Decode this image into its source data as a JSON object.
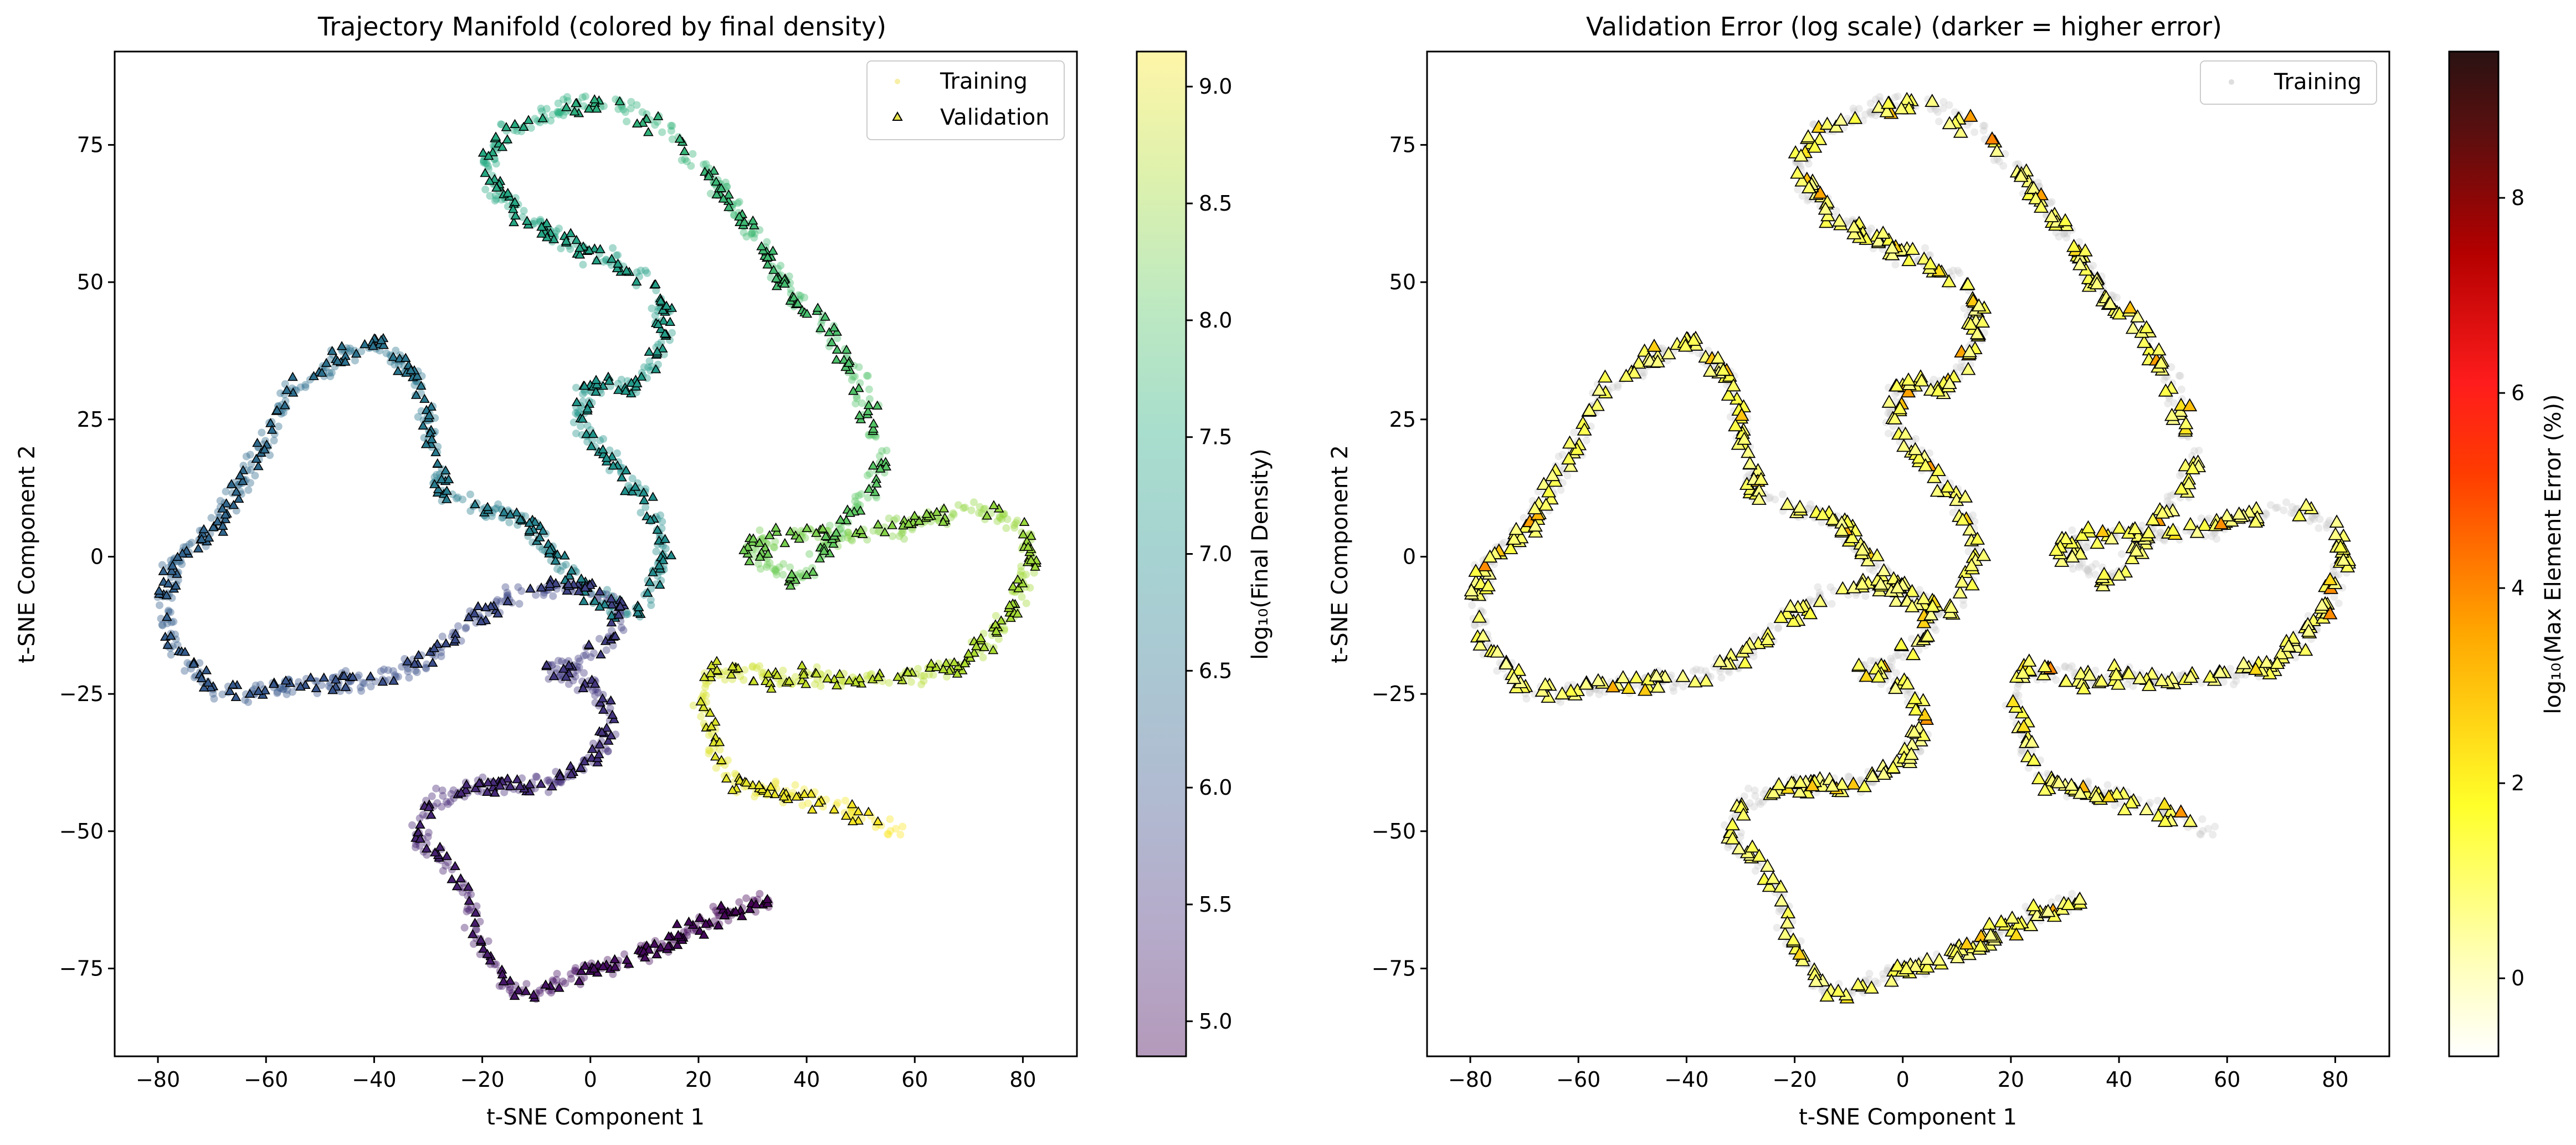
{
  "chart_data": [
    {
      "type": "scatter",
      "title": "Trajectory Manifold (colored by final density)",
      "xlabel": "t-SNE Component 1",
      "ylabel": "t-SNE Component 2",
      "xlim": [
        -88,
        90
      ],
      "ylim": [
        -91,
        92
      ],
      "xticks": [
        -80,
        -60,
        -40,
        -20,
        0,
        20,
        40,
        60,
        80
      ],
      "yticks": [
        -75,
        -50,
        -25,
        0,
        25,
        50,
        75
      ],
      "legend": {
        "position": "upper right",
        "entries": [
          "Training",
          "Validation"
        ]
      },
      "colorbar": {
        "label": "log₁₀(Final Density)",
        "colormap": "viridis",
        "range": [
          4.85,
          9.15
        ],
        "ticks": [
          "5.0",
          "5.5",
          "6.0",
          "6.5",
          "7.0",
          "7.5",
          "8.0",
          "8.5",
          "9.0"
        ]
      },
      "grid": false,
      "series": [
        {
          "name": "Training",
          "marker": "circle",
          "color_by": "log10 final density",
          "alpha": 0.4
        },
        {
          "name": "Validation",
          "marker": "triangle",
          "edge_color": "#000000",
          "color_by": "log10 final density"
        }
      ],
      "trajectory": {
        "x": [
          33,
          25,
          15,
          5,
          -5,
          -12,
          -16,
          -20,
          -22,
          -24,
          -28,
          -32,
          -30,
          -22,
          -12,
          -4,
          2,
          4,
          2,
          -2,
          -6,
          -8,
          -4,
          4,
          6,
          2,
          -4,
          -14,
          -22,
          -30,
          -38,
          -46,
          -54,
          -62,
          -70,
          -76,
          -79,
          -78,
          -74,
          -70,
          -66,
          -62,
          -58,
          -56,
          -52,
          -50,
          -48,
          -44,
          -40,
          -36,
          -32,
          -30,
          -28,
          -28,
          -25,
          -20,
          -16,
          -12,
          -10,
          -8,
          -4,
          2,
          6,
          10,
          12,
          14,
          12,
          6,
          2,
          -2,
          -2,
          0,
          4,
          8,
          12,
          14,
          12,
          6,
          0,
          -6,
          -12,
          -18,
          -20,
          -16,
          -10,
          -4,
          2,
          8,
          14,
          18,
          22,
          28,
          34,
          38,
          44,
          48,
          52,
          54,
          52,
          48,
          44,
          40,
          38,
          28,
          32,
          40,
          48,
          56,
          64,
          70,
          76,
          80,
          82,
          81,
          78,
          74,
          68,
          60,
          52,
          42,
          32,
          26,
          22,
          21,
          22,
          24,
          28,
          36,
          44,
          52,
          58
        ],
        "y": [
          -63,
          -65,
          -70,
          -74,
          -77,
          -80,
          -78,
          -72,
          -65,
          -58,
          -55,
          -52,
          -45,
          -42,
          -42,
          -40,
          -35,
          -30,
          -25,
          -22,
          -21,
          -21,
          -20,
          -15,
          -10,
          -6,
          -5,
          -7,
          -12,
          -18,
          -22,
          -23,
          -23,
          -25,
          -24,
          -18,
          -10,
          -3,
          2,
          5,
          10,
          18,
          25,
          30,
          32,
          33,
          35,
          38,
          39,
          37,
          32,
          25,
          17,
          12,
          10,
          9,
          8,
          6,
          4,
          2,
          -3,
          -8,
          -10,
          -9,
          -5,
          0,
          8,
          15,
          20,
          23,
          27,
          31,
          32,
          30,
          35,
          43,
          50,
          53,
          55,
          58,
          62,
          67,
          72,
          77,
          80,
          82,
          83,
          81,
          78,
          74,
          70,
          62,
          52,
          47,
          42,
          35,
          25,
          18,
          12,
          8,
          2,
          -3,
          -5,
          2,
          3,
          4,
          4,
          5,
          7,
          9,
          8,
          5,
          0,
          -3,
          -10,
          -15,
          -20,
          -22,
          -22,
          -22,
          -22,
          -21,
          -21,
          -25,
          -32,
          -38,
          -42,
          -43,
          -45,
          -48,
          -50
        ],
        "color_value": [
          4.85,
          9.15
        ]
      }
    },
    {
      "type": "scatter",
      "title": "Validation Error (log scale) (darker = higher error)",
      "xlabel": "t-SNE Component 1",
      "ylabel": "t-SNE Component 2",
      "xlim": [
        -88,
        90
      ],
      "ylim": [
        -91,
        92
      ],
      "xticks": [
        -80,
        -60,
        -40,
        -20,
        0,
        20,
        40,
        60,
        80
      ],
      "yticks": [
        -75,
        -50,
        -25,
        0,
        25,
        50,
        75
      ],
      "legend": {
        "position": "upper right",
        "entries": [
          "Training"
        ]
      },
      "colorbar": {
        "label": "log₁₀(Max Element Error (%))",
        "colormap": "hot_r",
        "range": [
          -0.8,
          9.5
        ],
        "ticks": [
          "0",
          "2",
          "4",
          "6",
          "8"
        ]
      },
      "grid": false,
      "series": [
        {
          "name": "Training",
          "marker": "circle",
          "color": "#c8c8c8"
        },
        {
          "marker": "triangle",
          "edge_color": "#000000",
          "color_by": "log10 max element error",
          "typical_value": 1.0
        }
      ]
    }
  ],
  "colors": {
    "training_gray": "#c8c8c8",
    "hot_yellow": "#ffff3a",
    "hot_orange": "#ff8a00",
    "hot_red": "#ff1a1a"
  }
}
